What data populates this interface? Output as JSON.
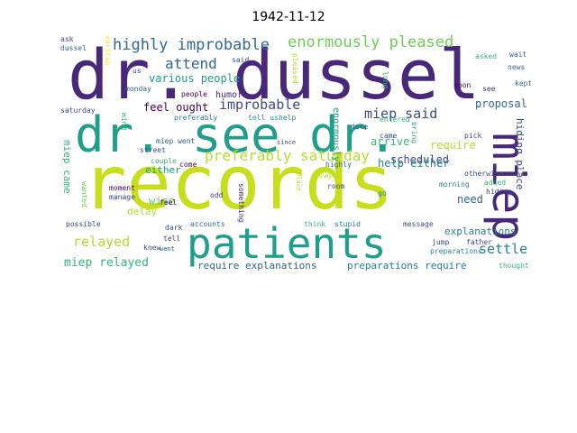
{
  "title": "1942-11-12",
  "words": {
    "records": "records",
    "dr_dussel": "dr. dussel",
    "dr_see_dr": "dr. see dr.",
    "patients": "patients",
    "miep": "miep",
    "highly_improbable": "highly improbable",
    "enormously_pleased": "enormously pleased",
    "attend": "attend",
    "various_people": "various people",
    "improbable": "improbable",
    "miep_said": "miep said",
    "feel_ought": "feel ought",
    "humor": "humor",
    "preferably_saturday": "preferably saturday",
    "either": "either",
    "scheduled": "scheduled",
    "arrive": "arrive",
    "require": "require",
    "help_either": "help either",
    "proposal": "proposal",
    "hiding_place": "hiding place",
    "miep_came": "miep came",
    "relayed": "relayed",
    "wise": "wise",
    "delay": "delay",
    "need": "need",
    "settle": "settle",
    "explanations": "explanations",
    "miep_relayed": "miep relayed",
    "require_explanations": "require explanations",
    "preparations_require": "preparations require",
    "enormously": "enormously",
    "saturday": "saturday",
    "ask": "ask",
    "dussel": "dussel",
    "various": "various",
    "us": "us",
    "monday": "monday",
    "people": "people",
    "said": "said",
    "pleased": "pleased",
    "long": "long",
    "soon": "soon",
    "see": "see",
    "asked": "asked",
    "wait": "wait",
    "news": "news",
    "kept": "kept",
    "preferably": "preferably",
    "tell_us": "tell us",
    "help": "help",
    "entered": "entered",
    "came": "came",
    "date": "date",
    "bring": "bring",
    "pick": "pick",
    "mind": "mind",
    "miep_went": "miep went",
    "since": "since",
    "street": "street",
    "couple": "couple",
    "come": "come",
    "otherwise": "otherwise",
    "morning": "morning",
    "added": "added",
    "hiding": "hiding",
    "moment": "moment",
    "manage": "manage",
    "wanted": "wanted",
    "odd": "odd",
    "something": "something",
    "highly": "highly",
    "go": "go",
    "feel": "feel",
    "place": "place",
    "ought": "ought",
    "room": "room",
    "possible": "possible",
    "dark": "dark",
    "accounts": "accounts",
    "think": "think",
    "stupid": "stupid",
    "message": "message",
    "tell": "tell",
    "knew": "knew",
    "went": "went",
    "jump": "jump",
    "father": "father",
    "preparations": "preparations",
    "thought": "thought"
  },
  "colors": {
    "dark_purple": "#440154",
    "purple": "#482878",
    "indigo": "#3e4989",
    "blue": "#31688e",
    "teal_blue": "#26828e",
    "teal": "#1f9e89",
    "green": "#35b779",
    "light_green": "#6ece58",
    "lime": "#b5de2b",
    "yellow": "#fde725"
  }
}
